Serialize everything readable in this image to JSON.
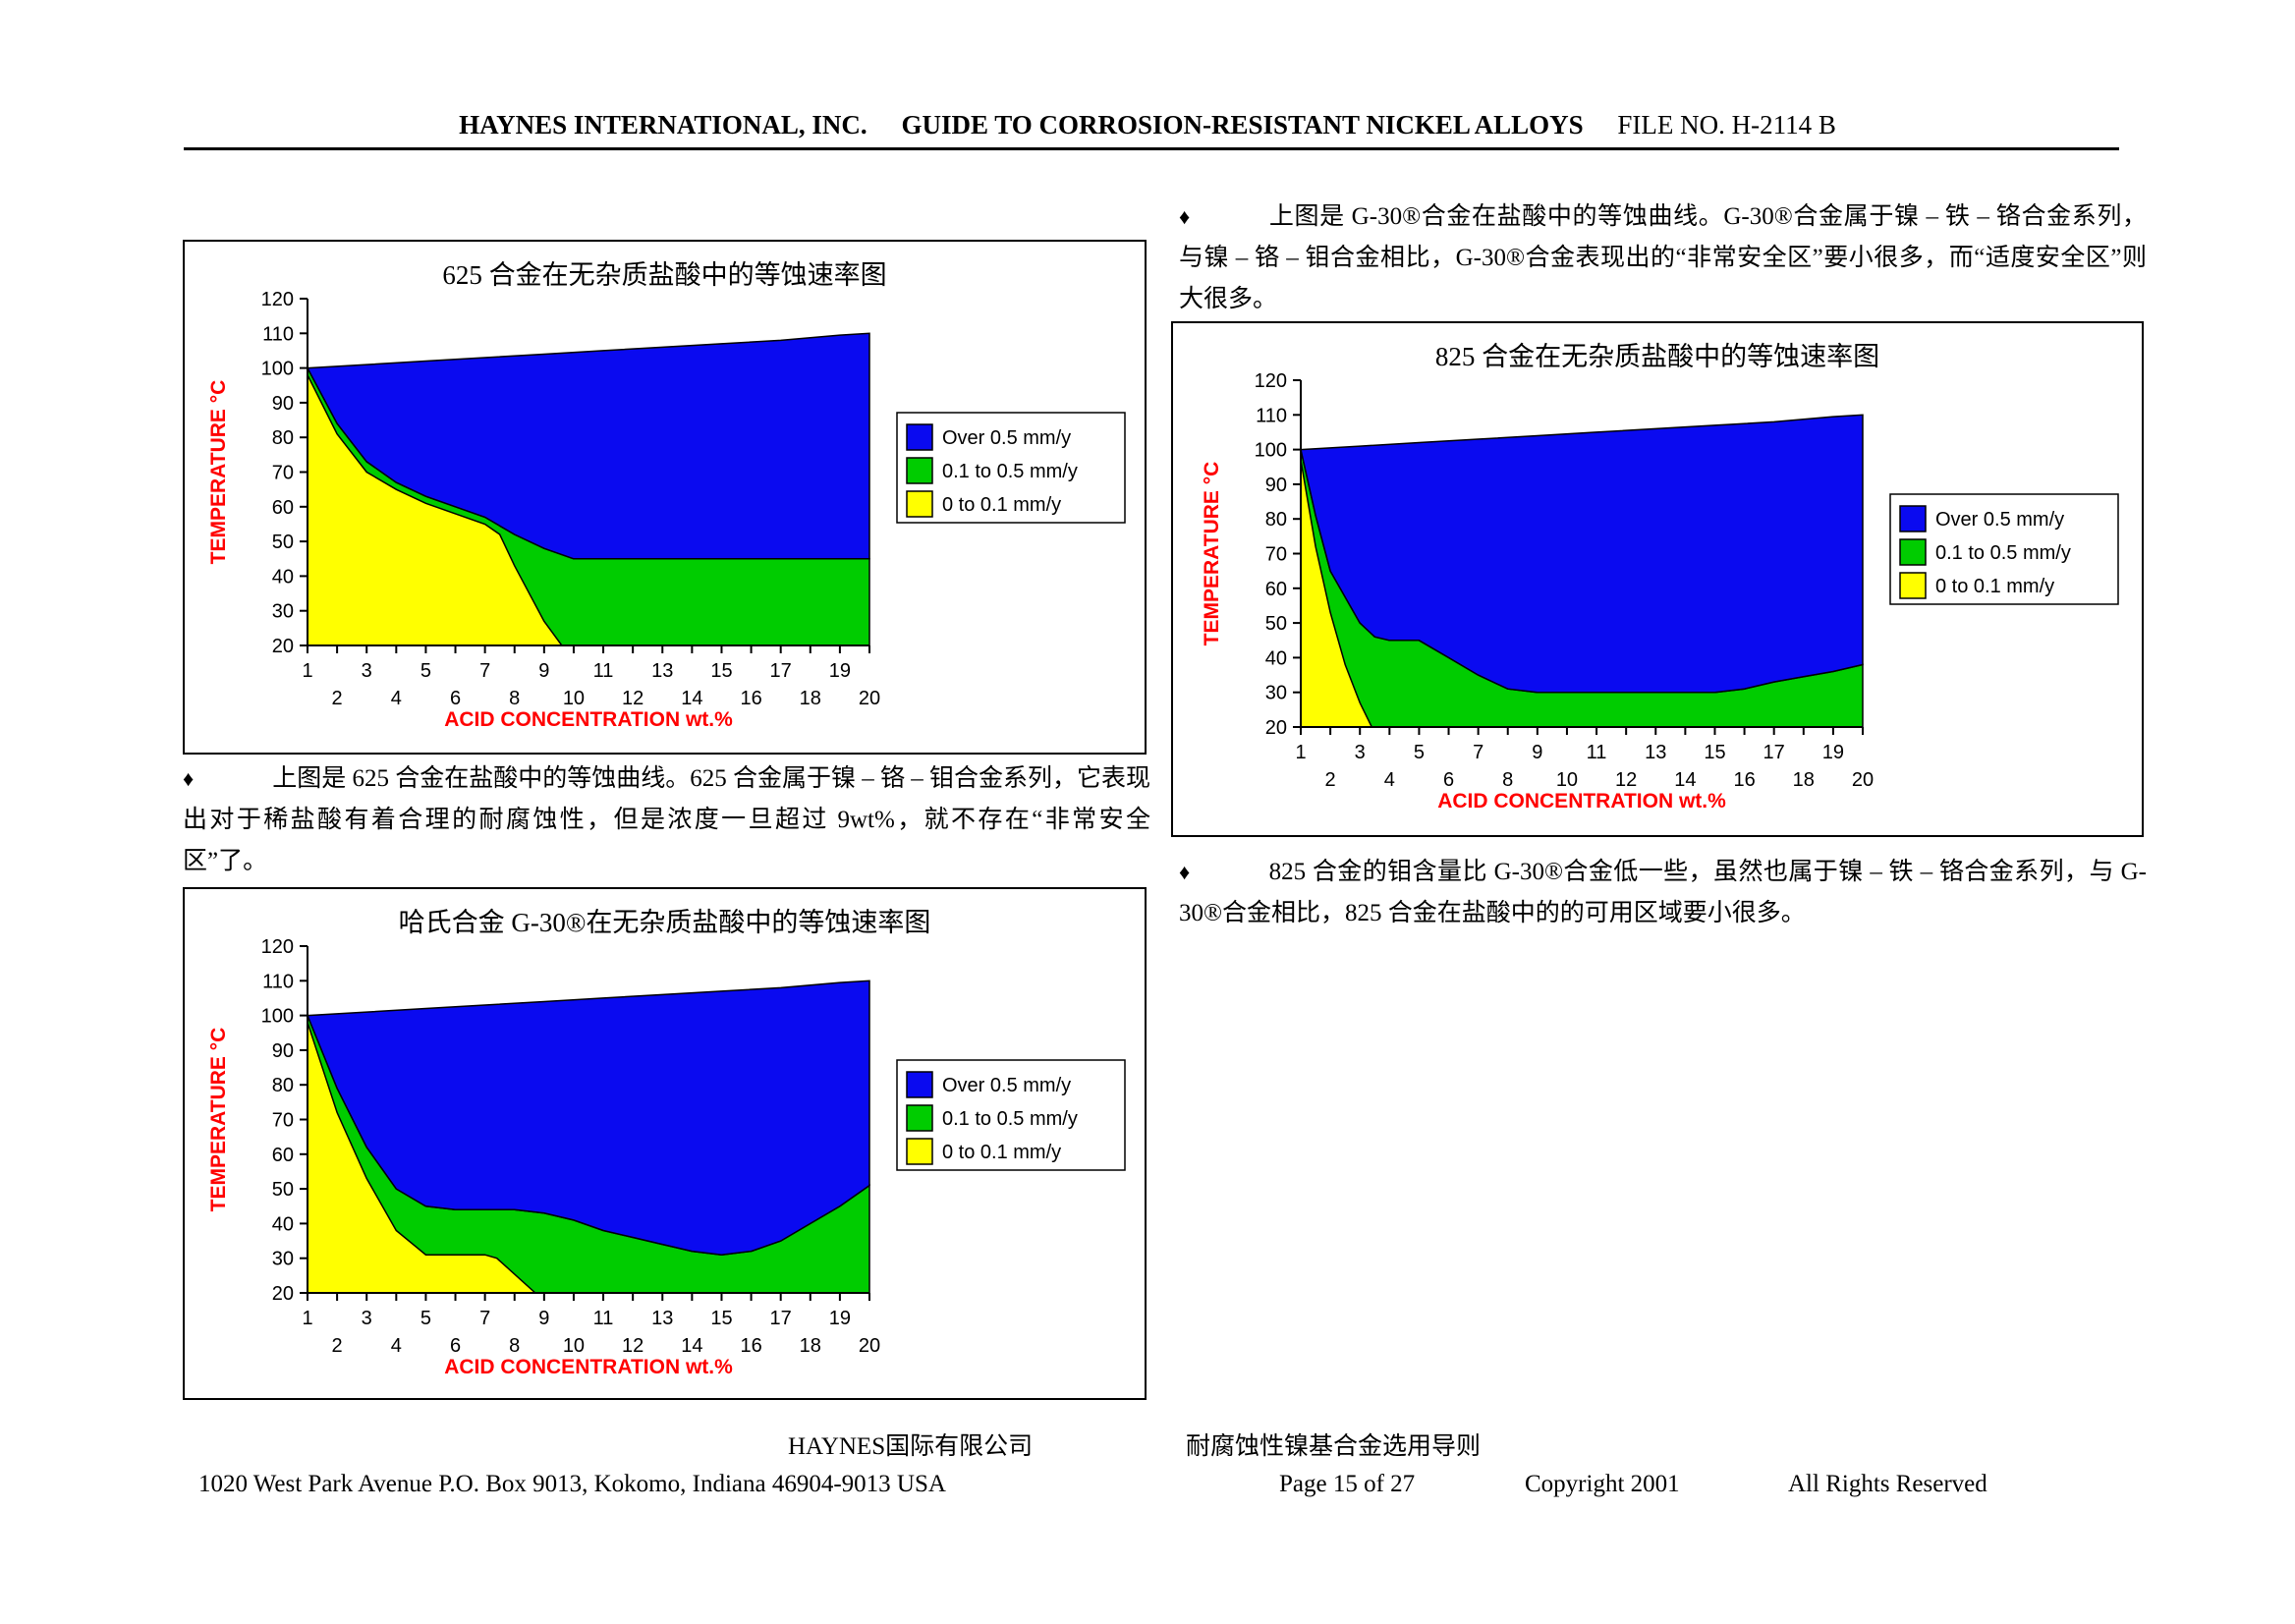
{
  "header": {
    "company": "HAYNES INTERNATIONAL, INC.",
    "guide_title": "GUIDE TO CORROSION-RESISTANT NICKEL ALLOYS",
    "file_no": "FILE NO. H-2114 B"
  },
  "colors": {
    "blue": "#0a0af0",
    "green": "#00cc00",
    "yellow": "#ffff00",
    "axis_title": "#ff0000",
    "tick_label": "#000000"
  },
  "paragraphs": {
    "p625": {
      "bullet": "♦",
      "text": "上图是 625 合金在盐酸中的等蚀曲线。625 合金属于镍 – 铬 – 钼合金系列，它表现出对于稀盐酸有着合理的耐腐蚀性，但是浓度一旦超过 9wt%，就不存在“非常安全区”了。"
    },
    "pg30": {
      "bullet": "♦",
      "text": "上图是 G-30®合金在盐酸中的等蚀曲线。G-30®合金属于镍 – 铁 – 铬合金系列，与镍 – 铬 – 钼合金相比，G-30®合金表现出的“非常安全区”要小很多，而“适度安全区”则大很多。"
    },
    "p825": {
      "bullet": "♦",
      "text": "825 合金的钼含量比 G-30®合金低一些，虽然也属于镍 – 铁 – 铬合金系列，与 G-30®合金相比，825 合金在盐酸中的的可用区域要小很多。"
    }
  },
  "footer": {
    "company_cn": "HAYNES国际有限公司",
    "guide_cn": "耐腐蚀性镍基合金选用导则",
    "address": "1020 West Park Avenue P.O. Box 9013, Kokomo, Indiana 46904-9013 USA",
    "page": "Page 15 of 27",
    "copyright": "Copyright 2001",
    "rights": "All Rights Reserved"
  },
  "chart_data": [
    {
      "id": "chart-625",
      "type": "area",
      "title": "625 合金在无杂质盐酸中的等蚀速率图",
      "xlabel": "ACID CONCENTRATION  wt.%",
      "ylabel": "TEMPERATURE  °C",
      "xlim": [
        1,
        20
      ],
      "ylim": [
        20,
        120
      ],
      "y_ticks": [
        120,
        110,
        100,
        90,
        80,
        70,
        60,
        50,
        40,
        30,
        20
      ],
      "x_ticks_odd": [
        1,
        3,
        5,
        7,
        9,
        11,
        13,
        15,
        17,
        19
      ],
      "x_ticks_even": [
        2,
        4,
        6,
        8,
        10,
        12,
        14,
        16,
        18,
        20
      ],
      "legend": [
        {
          "label": "Over 0.5 mm/y",
          "color": "#0a0af0"
        },
        {
          "label": "0.1 to 0.5 mm/y",
          "color": "#00cc00"
        },
        {
          "label": "0 to 0.1 mm/y",
          "color": "#ffff00"
        }
      ],
      "boundaries": {
        "boiling_point_curve": [
          [
            1,
            100
          ],
          [
            3,
            101
          ],
          [
            5,
            102
          ],
          [
            7,
            103
          ],
          [
            9,
            104
          ],
          [
            11,
            105
          ],
          [
            13,
            106
          ],
          [
            15,
            107
          ],
          [
            17,
            108
          ],
          [
            19,
            109.5
          ],
          [
            20,
            110
          ]
        ],
        "blue_green_boundary": [
          [
            1,
            100
          ],
          [
            2,
            84
          ],
          [
            3,
            73
          ],
          [
            4,
            67
          ],
          [
            5,
            63
          ],
          [
            6,
            60
          ],
          [
            7,
            57
          ],
          [
            8,
            52
          ],
          [
            9,
            48
          ],
          [
            10,
            45
          ],
          [
            20,
            45
          ]
        ],
        "green_yellow_boundary": [
          [
            1,
            98
          ],
          [
            2,
            81
          ],
          [
            3,
            70
          ],
          [
            4,
            65
          ],
          [
            5,
            61
          ],
          [
            6,
            58
          ],
          [
            7,
            55
          ],
          [
            7.5,
            52
          ],
          [
            8,
            43
          ],
          [
            9,
            27
          ],
          [
            9.6,
            20
          ]
        ]
      }
    },
    {
      "id": "chart-g30",
      "type": "area",
      "title": "哈氏合金 G-30®在无杂质盐酸中的等蚀速率图",
      "xlabel": "ACID CONCENTRATION  wt.%",
      "ylabel": "TEMPERATURE  °C",
      "xlim": [
        1,
        20
      ],
      "ylim": [
        20,
        120
      ],
      "y_ticks": [
        120,
        110,
        100,
        90,
        80,
        70,
        60,
        50,
        40,
        30,
        20
      ],
      "x_ticks_odd": [
        1,
        3,
        5,
        7,
        9,
        11,
        13,
        15,
        17,
        19
      ],
      "x_ticks_even": [
        2,
        4,
        6,
        8,
        10,
        12,
        14,
        16,
        18,
        20
      ],
      "legend": [
        {
          "label": "Over 0.5 mm/y",
          "color": "#0a0af0"
        },
        {
          "label": "0.1 to 0.5 mm/y",
          "color": "#00cc00"
        },
        {
          "label": "0 to 0.1 mm/y",
          "color": "#ffff00"
        }
      ],
      "boundaries": {
        "boiling_point_curve": [
          [
            1,
            100
          ],
          [
            3,
            101
          ],
          [
            5,
            102
          ],
          [
            7,
            103
          ],
          [
            9,
            104
          ],
          [
            11,
            105
          ],
          [
            13,
            106
          ],
          [
            15,
            107
          ],
          [
            17,
            108
          ],
          [
            19,
            109.5
          ],
          [
            20,
            110
          ]
        ],
        "blue_green_boundary": [
          [
            1,
            100
          ],
          [
            2,
            79
          ],
          [
            3,
            62
          ],
          [
            4,
            50
          ],
          [
            5,
            45
          ],
          [
            6,
            44
          ],
          [
            8,
            44
          ],
          [
            9,
            43
          ],
          [
            10,
            41
          ],
          [
            11,
            38
          ],
          [
            12,
            36
          ],
          [
            13,
            34
          ],
          [
            14,
            32
          ],
          [
            15,
            31
          ],
          [
            16,
            32
          ],
          [
            17,
            35
          ],
          [
            18,
            40
          ],
          [
            19,
            45
          ],
          [
            20,
            51
          ]
        ],
        "green_yellow_boundary": [
          [
            1,
            98
          ],
          [
            2,
            72
          ],
          [
            3,
            53
          ],
          [
            4,
            38
          ],
          [
            5,
            31
          ],
          [
            7,
            31
          ],
          [
            7.4,
            30
          ],
          [
            8.7,
            20
          ]
        ]
      }
    },
    {
      "id": "chart-825",
      "type": "area",
      "title": "825 合金在无杂质盐酸中的等蚀速率图",
      "xlabel": "ACID CONCENTRATION  wt.%",
      "ylabel": "TEMPERATURE  °C",
      "xlim": [
        1,
        20
      ],
      "ylim": [
        20,
        120
      ],
      "y_ticks": [
        120,
        110,
        100,
        90,
        80,
        70,
        60,
        50,
        40,
        30,
        20
      ],
      "x_ticks_odd": [
        1,
        3,
        5,
        7,
        9,
        11,
        13,
        15,
        17,
        19
      ],
      "x_ticks_even": [
        2,
        4,
        6,
        8,
        10,
        12,
        14,
        16,
        18,
        20
      ],
      "legend": [
        {
          "label": "Over 0.5 mm/y",
          "color": "#0a0af0"
        },
        {
          "label": "0.1 to 0.5 mm/y",
          "color": "#00cc00"
        },
        {
          "label": "0 to 0.1 mm/y",
          "color": "#ffff00"
        }
      ],
      "boundaries": {
        "boiling_point_curve": [
          [
            1,
            100
          ],
          [
            3,
            101
          ],
          [
            5,
            102
          ],
          [
            7,
            103
          ],
          [
            9,
            104
          ],
          [
            11,
            105
          ],
          [
            13,
            106
          ],
          [
            15,
            107
          ],
          [
            17,
            108
          ],
          [
            19,
            109.5
          ],
          [
            20,
            110
          ]
        ],
        "blue_green_boundary": [
          [
            1,
            100
          ],
          [
            1.5,
            81
          ],
          [
            2,
            65
          ],
          [
            3,
            50
          ],
          [
            3.5,
            46
          ],
          [
            4,
            45
          ],
          [
            5,
            45
          ],
          [
            6,
            40
          ],
          [
            7,
            35
          ],
          [
            8,
            31
          ],
          [
            9,
            30
          ],
          [
            15,
            30
          ],
          [
            16,
            31
          ],
          [
            17,
            33
          ],
          [
            18,
            34.5
          ],
          [
            19,
            36
          ],
          [
            20,
            38
          ]
        ],
        "green_yellow_boundary": [
          [
            1,
            97
          ],
          [
            1.5,
            72
          ],
          [
            2,
            53
          ],
          [
            2.5,
            38
          ],
          [
            3,
            27
          ],
          [
            3.4,
            20
          ]
        ]
      }
    }
  ]
}
